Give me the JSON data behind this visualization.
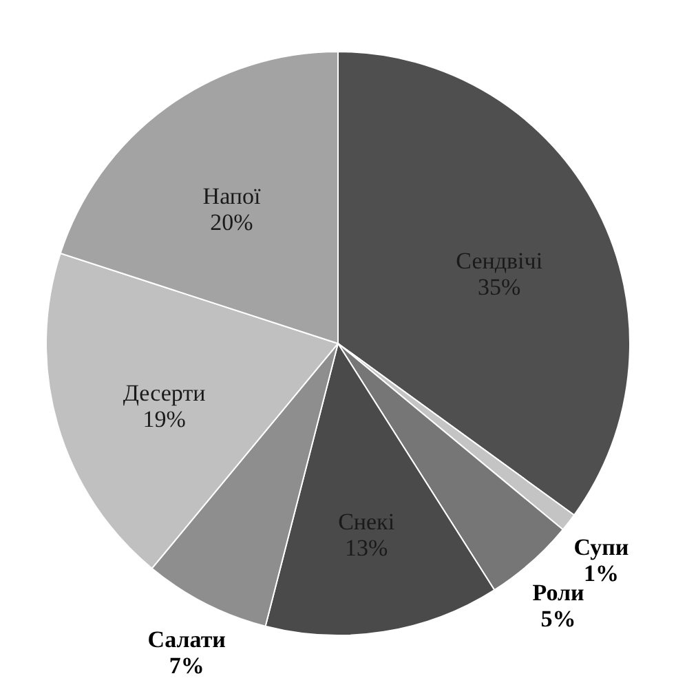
{
  "chart_data": {
    "type": "pie",
    "categories": [
      "Сендвічі",
      "Супи",
      "Роли",
      "Снекі",
      "Салати",
      "Десерти",
      "Напої"
    ],
    "values": [
      35,
      1,
      5,
      13,
      7,
      19,
      20
    ],
    "value_labels": [
      "35%",
      "1%",
      "5%",
      "13%",
      "7%",
      "19%",
      "20%"
    ],
    "colors": [
      "#4f4f4f",
      "#c4c4c4",
      "#767676",
      "#4a4a4a",
      "#8e8e8e",
      "#c0c0c0",
      "#a3a3a3"
    ]
  }
}
